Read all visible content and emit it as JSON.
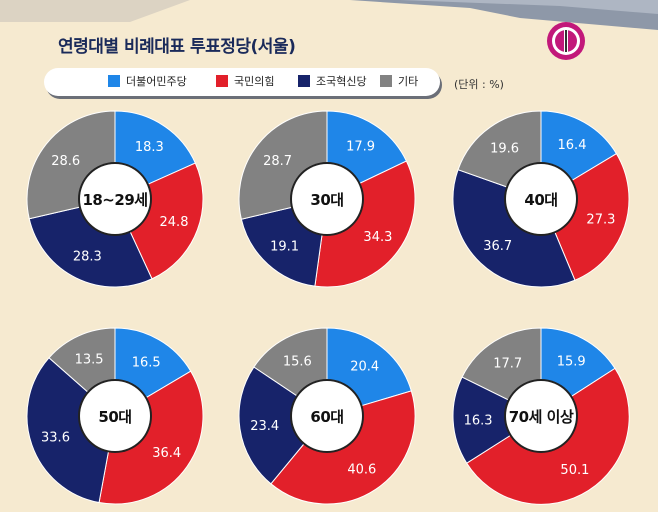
{
  "title": "연령대별 비례대표 투표정당(서울)",
  "unit_note": "(단위 : %)",
  "colors": {
    "background": "#f6ead0",
    "더불어민주당": "#1f86e8",
    "국민의힘": "#e2202a",
    "조국혁신당": "#17236a",
    "기타": "#828282"
  },
  "legend": [
    {
      "label": "더불어민주당",
      "color": "#1f86e8"
    },
    {
      "label": "국민의힘",
      "color": "#e2202a"
    },
    {
      "label": "조국혁신당",
      "color": "#17236a"
    },
    {
      "label": "기타",
      "color": "#828282"
    }
  ],
  "chart_data": {
    "type": "pie",
    "title": "연령대별 비례대표 투표정당(서울)",
    "unit": "%",
    "series_names": [
      "더불어민주당",
      "국민의힘",
      "조국혁신당",
      "기타"
    ],
    "charts": [
      {
        "label": "18~29세",
        "values": [
          18.3,
          24.8,
          28.3,
          28.6
        ]
      },
      {
        "label": "30대",
        "values": [
          17.9,
          34.3,
          19.1,
          28.7
        ]
      },
      {
        "label": "40대",
        "values": [
          16.4,
          27.3,
          36.7,
          19.6
        ]
      },
      {
        "label": "50대",
        "values": [
          16.5,
          36.4,
          33.6,
          13.5
        ]
      },
      {
        "label": "60대",
        "values": [
          20.4,
          40.6,
          23.4,
          15.6
        ]
      },
      {
        "label": "70세 이상",
        "values": [
          15.9,
          50.1,
          16.3,
          17.7
        ]
      }
    ]
  }
}
